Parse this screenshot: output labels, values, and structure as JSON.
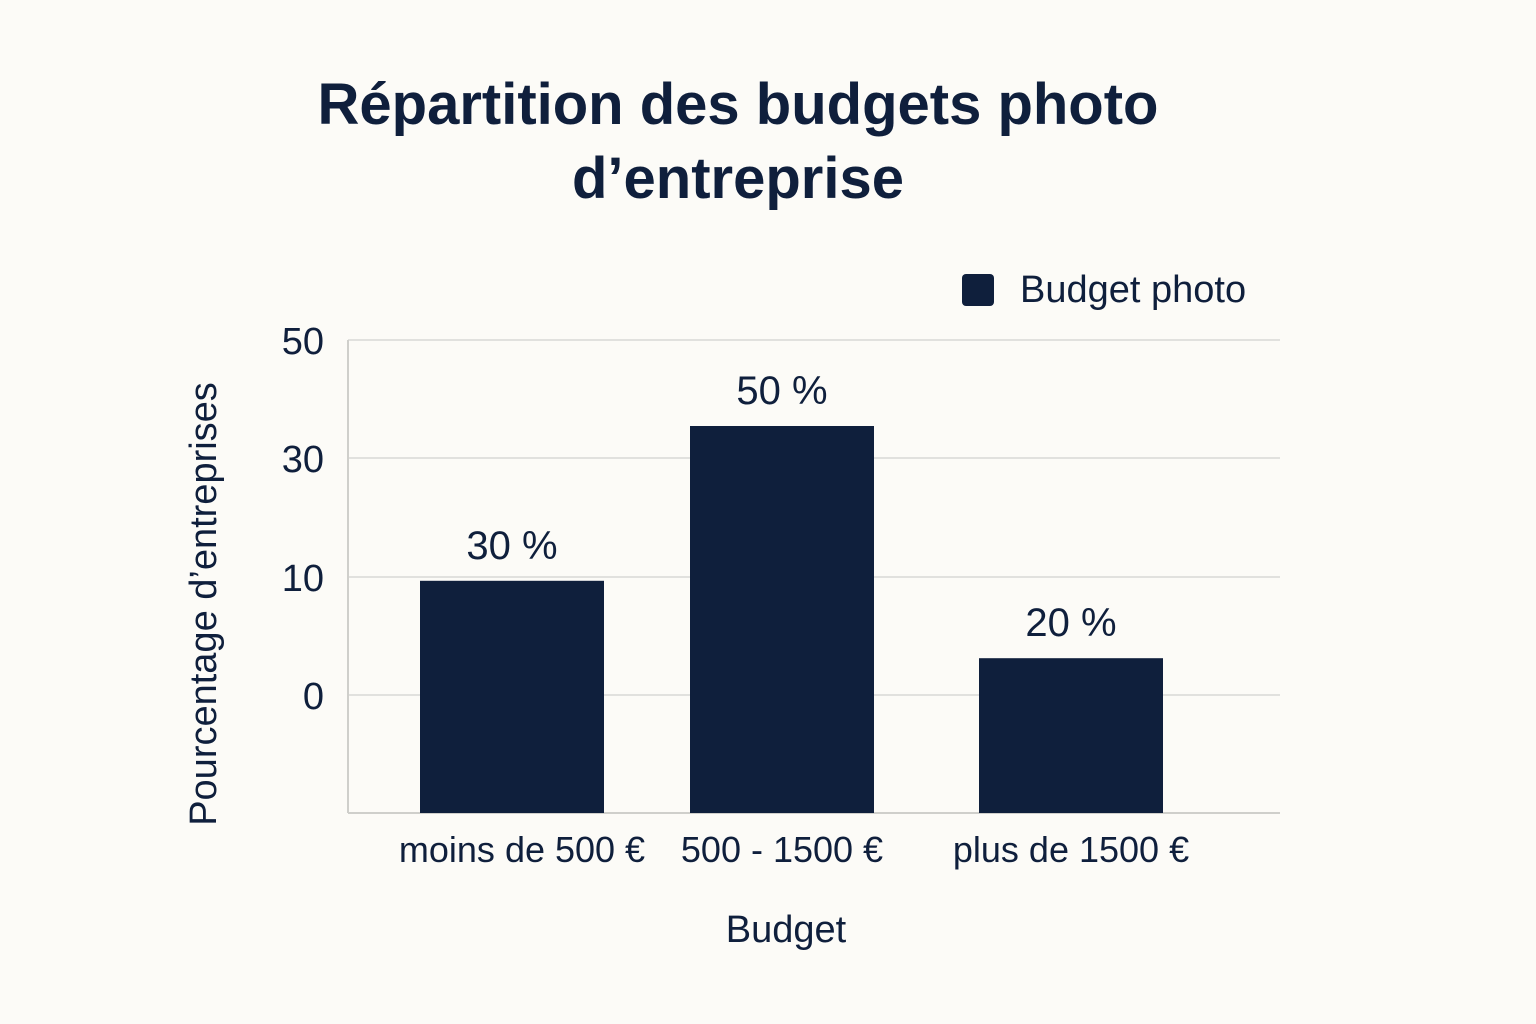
{
  "colors": {
    "background": "#fcfbf7",
    "bar": "#0f1f3c",
    "text": "#0f1f3c",
    "grid": "#e1e1de",
    "axis": "#cfcfcb"
  },
  "chart_data": {
    "type": "bar",
    "title_lines": [
      "Répartition des budgets photo",
      "d’entreprise"
    ],
    "xlabel": "Budget",
    "ylabel": "Pourcentage d’entreprises",
    "categories": [
      "moins de 500 €",
      "500 - 1500 €",
      "plus de 1500 €"
    ],
    "series": [
      {
        "name": "Budget photo",
        "values": [
          30,
          50,
          20
        ],
        "data_labels": [
          "30 %",
          "50 %",
          "20 %"
        ]
      }
    ],
    "yticks": [
      {
        "value": 0,
        "label": "0"
      },
      {
        "value": 10,
        "label": "10"
      },
      {
        "value": 30,
        "label": "30"
      },
      {
        "value": 50,
        "label": "50"
      }
    ],
    "grid": true,
    "legend_position": "top-right"
  }
}
